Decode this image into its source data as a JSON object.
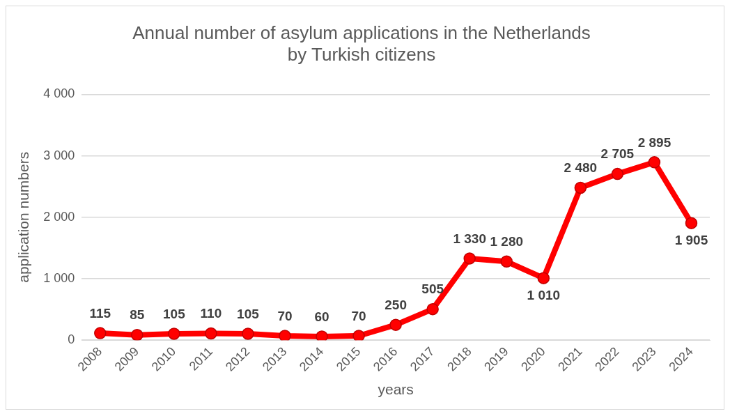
{
  "chart_data": {
    "type": "line",
    "title": "Annual number of asylum applications in the Netherlands\nby Turkish citizens",
    "xlabel": "years",
    "ylabel": "application numbers",
    "categories": [
      "2008",
      "2009",
      "2010",
      "2011",
      "2012",
      "2013",
      "2014",
      "2015",
      "2016",
      "2017",
      "2018",
      "2019",
      "2020",
      "2021",
      "2022",
      "2023",
      "2024"
    ],
    "series": [
      {
        "color": "#ff0000",
        "values": [
          115,
          85,
          105,
          110,
          105,
          70,
          60,
          70,
          250,
          505,
          1330,
          1280,
          1010,
          2480,
          2705,
          2895,
          1905
        ]
      }
    ],
    "value_labels": [
      "115",
      "85",
      "105",
      "110",
      "105",
      "70",
      "60",
      "70",
      "250",
      "505",
      "1 330",
      "1 280",
      "1 010",
      "2 480",
      "2 705",
      "2 895",
      "1 905"
    ],
    "ylim": [
      0,
      4000
    ],
    "yticks": [
      {
        "value": 0,
        "label": "0"
      },
      {
        "value": 1000,
        "label": "1 000"
      },
      {
        "value": 2000,
        "label": "2 000"
      },
      {
        "value": 3000,
        "label": "3 000"
      },
      {
        "value": 4000,
        "label": "4 000"
      }
    ],
    "grid": "y",
    "marker": "circle",
    "line_style": "solid"
  }
}
